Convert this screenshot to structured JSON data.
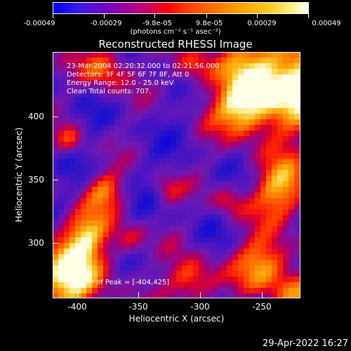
{
  "colorbar": {
    "ticks": [
      "-0.00049",
      "-0.00029",
      "-9.8e-05",
      "9.8e-05",
      "0.00029",
      "0.00049"
    ],
    "units": "(photons cm⁻² s⁻¹ asec⁻²)"
  },
  "title": "Reconstructed RHESSI Image",
  "annotations": {
    "time": "23-Mar-2004 02:20:32.000 to 02:21:56.000",
    "detectors": "Detectors: 3F 4F 5F 6F 7F 8F, Att 0",
    "energy": "Energy Range: 12.0 - 25.0 keV",
    "counts": "Clean    Total counts: 707."
  },
  "peak": "Position of Peak = [-404,425]",
  "axes": {
    "x_ticks": [
      "-400",
      "-350",
      "-300",
      "-250"
    ],
    "y_ticks": [
      "400",
      "350",
      "300"
    ],
    "xlabel": "Heliocentric X (arcsec)",
    "ylabel": "Heliocentric Y (arcsec)"
  },
  "timestamp": "29-Apr-2022 16:27"
}
